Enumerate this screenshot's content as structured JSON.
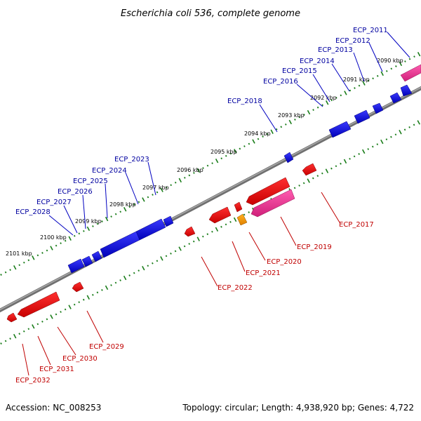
{
  "title": "Escherichia coli 536, complete genome",
  "footer": {
    "accession": "Accession: NC_008253",
    "topology": "Topology: circular; Length: 4,938,920 bp; Genes: 4,722"
  },
  "colors": {
    "backbone": "#808080",
    "forward": "#1010e0",
    "reverse": "#ee1010",
    "pink": "#ee3a99",
    "orange": "#f59a10",
    "tick": "#1a7d1a",
    "label_forward": "#0000a0",
    "label_reverse": "#c00000"
  },
  "kbp_labels": [
    "2090 kbp",
    "2091 kbp",
    "2092 kbp",
    "2093 kbp",
    "2094 kbp",
    "2095 kbp",
    "2096 kbp",
    "2097 kbp",
    "2098 kbp",
    "2099 kbp",
    "2100 kbp",
    "2101 kbp"
  ],
  "genes_forward": [
    "ECP_2011",
    "ECP_2012",
    "ECP_2013",
    "ECP_2014",
    "ECP_2015",
    "ECP_2016",
    "ECP_2018",
    "ECP_2023",
    "ECP_2024",
    "ECP_2025",
    "ECP_2026",
    "ECP_2027",
    "ECP_2028"
  ],
  "genes_reverse": [
    "ECP_2017",
    "ECP_2019",
    "ECP_2020",
    "ECP_2021",
    "ECP_2022",
    "ECP_2029",
    "ECP_2030",
    "ECP_2031",
    "ECP_2032"
  ]
}
